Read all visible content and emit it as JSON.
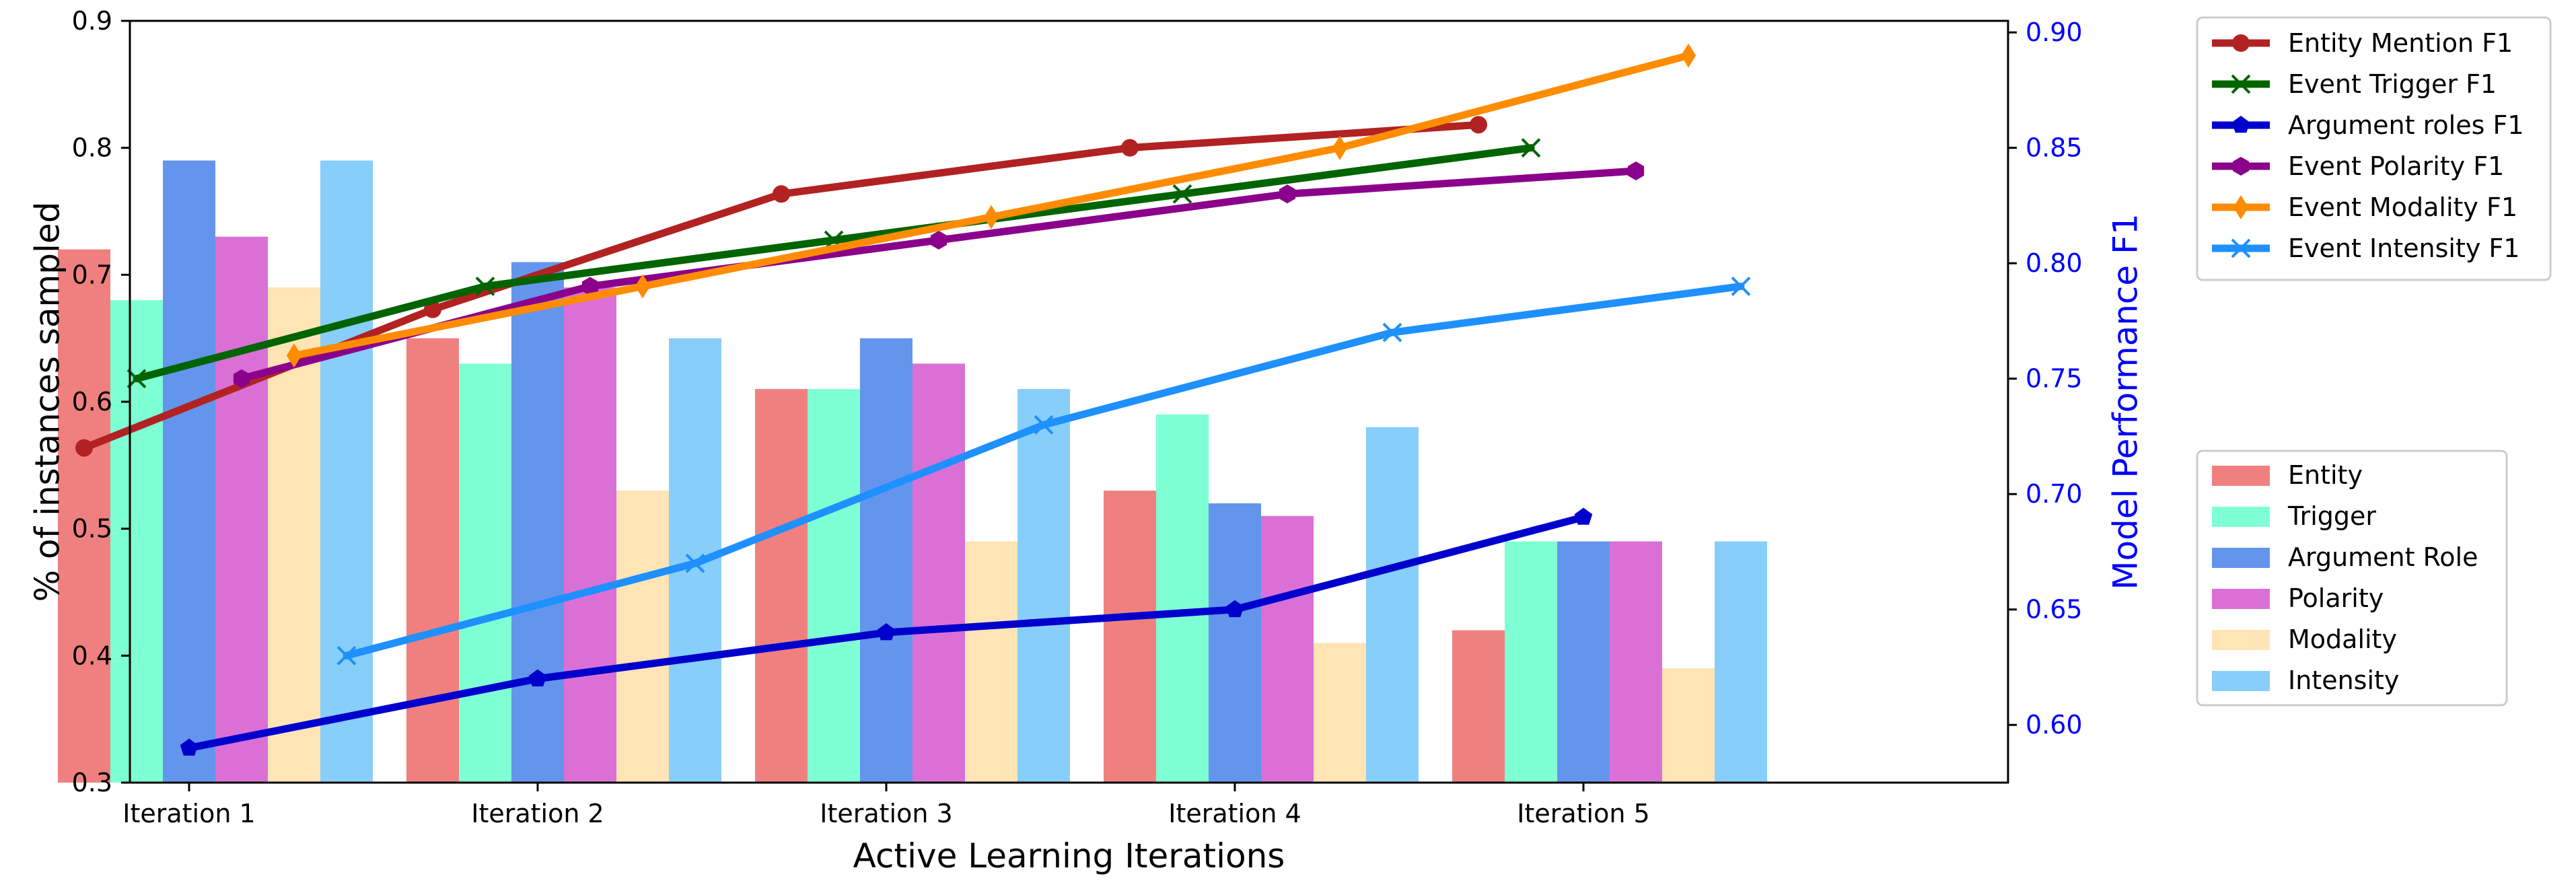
{
  "chart_data": {
    "type": "bar",
    "title": "",
    "xlabel": "Active Learning Iterations",
    "ylabel": "% of instances sampled",
    "y2label": "Model Performance F1",
    "categories": [
      "Iteration 1",
      "Iteration 2",
      "Iteration 3",
      "Iteration 4",
      "Iteration 5"
    ],
    "ylim": [
      0.3,
      0.9
    ],
    "y2lim": [
      0.575,
      0.905
    ],
    "yticks": [
      "0.3",
      "0.4",
      "0.5",
      "0.6",
      "0.7",
      "0.8",
      "0.9"
    ],
    "y2ticks": [
      "0.60",
      "0.65",
      "0.70",
      "0.75",
      "0.80",
      "0.85",
      "0.90"
    ],
    "grid": false,
    "bar_series": [
      {
        "name": "Entity",
        "color": "#f08080",
        "values": [
          0.72,
          0.65,
          0.61,
          0.53,
          0.42
        ]
      },
      {
        "name": "Trigger",
        "color": "#7fffd4",
        "values": [
          0.68,
          0.63,
          0.61,
          0.59,
          0.49
        ]
      },
      {
        "name": "Argument Role",
        "color": "#6495ed",
        "values": [
          0.79,
          0.71,
          0.65,
          0.52,
          0.49
        ]
      },
      {
        "name": "Polarity",
        "color": "#da70d6",
        "values": [
          0.73,
          0.69,
          0.63,
          0.51,
          0.49
        ]
      },
      {
        "name": "Modality",
        "color": "#ffe4b5",
        "values": [
          0.69,
          0.53,
          0.49,
          0.41,
          0.39
        ]
      },
      {
        "name": "Intensity",
        "color": "#87cefa",
        "values": [
          0.79,
          0.65,
          0.61,
          0.58,
          0.49
        ]
      }
    ],
    "line_series": [
      {
        "name": "Entity Mention F1",
        "color": "#b22222",
        "marker": "circle",
        "slot": 0,
        "values": [
          0.72,
          0.78,
          0.83,
          0.85,
          0.86
        ]
      },
      {
        "name": "Event Trigger F1",
        "color": "#006400",
        "marker": "x",
        "slot": 1,
        "values": [
          0.75,
          0.79,
          0.81,
          0.83,
          0.85
        ]
      },
      {
        "name": "Argument roles F1",
        "color": "#0000cd",
        "marker": "pentagon",
        "slot": 2,
        "values": [
          0.59,
          0.62,
          0.64,
          0.65,
          0.69
        ]
      },
      {
        "name": "Event Polarity F1",
        "color": "#8b008b",
        "marker": "hexagon",
        "slot": 3,
        "values": [
          0.75,
          0.79,
          0.81,
          0.83,
          0.84
        ]
      },
      {
        "name": "Event Modality F1",
        "color": "#ff8c00",
        "marker": "diamond",
        "slot": 4,
        "values": [
          0.76,
          0.79,
          0.82,
          0.85,
          0.89
        ]
      },
      {
        "name": "Event Intensity F1",
        "color": "#1e90ff",
        "marker": "x",
        "slot": 5,
        "values": [
          0.63,
          0.67,
          0.73,
          0.77,
          0.79
        ]
      }
    ],
    "legend_lines_position": "outside-right-top",
    "legend_bars_position": "outside-right-bottom",
    "secondary_axis_color": "#0000ff"
  }
}
